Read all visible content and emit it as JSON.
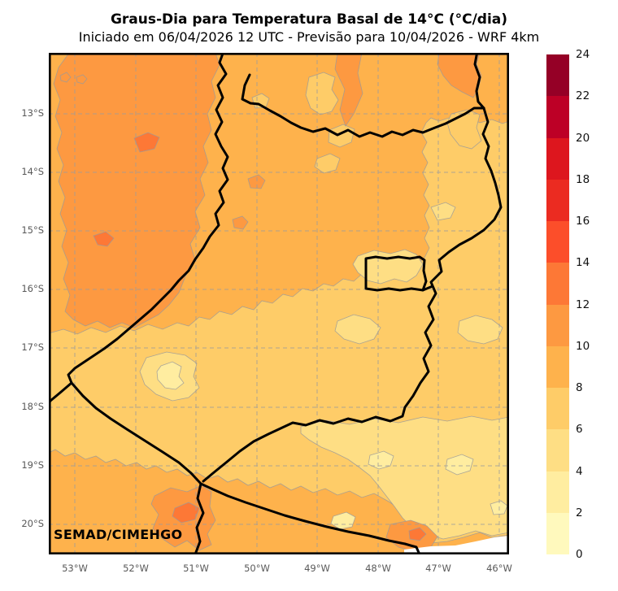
{
  "header": {
    "title": "Graus-Dia para Temperatura Basal de 14°C (°C/dia)",
    "subtitle": "Iniciado em 06/04/2026 12 UTC - Previsão para 10/04/2026 - WRF 4km"
  },
  "map": {
    "watermark": "SEMAD/CIMEHGO",
    "lat_labels": [
      "13°S",
      "14°S",
      "15°S",
      "16°S",
      "17°S",
      "18°S",
      "19°S",
      "20°S"
    ],
    "lon_labels": [
      "53°W",
      "52°W",
      "51°W",
      "50°W",
      "49°W",
      "48°W",
      "47°W",
      "46°W"
    ]
  },
  "colorbar": {
    "tick_labels": [
      "0",
      "2",
      "4",
      "6",
      "8",
      "10",
      "12",
      "14",
      "16",
      "18",
      "20",
      "22",
      "24"
    ],
    "bin_colors_low_to_high": [
      "#fff9bd",
      "#ffeda0",
      "#fede84",
      "#fecc68",
      "#feb24c",
      "#fd9941",
      "#fd7836",
      "#fc4e2a",
      "#eb2b21",
      "#dd161e",
      "#bd0026",
      "#950026"
    ]
  },
  "palette": {
    "state_border": "#000000",
    "grid_line": "#9c9c9c",
    "contour_line": "#9a9a9a",
    "axis_text": "#595959",
    "colorbar_text": "#111111",
    "background": "#ffffff",
    "no_data": "#ffffff"
  }
}
